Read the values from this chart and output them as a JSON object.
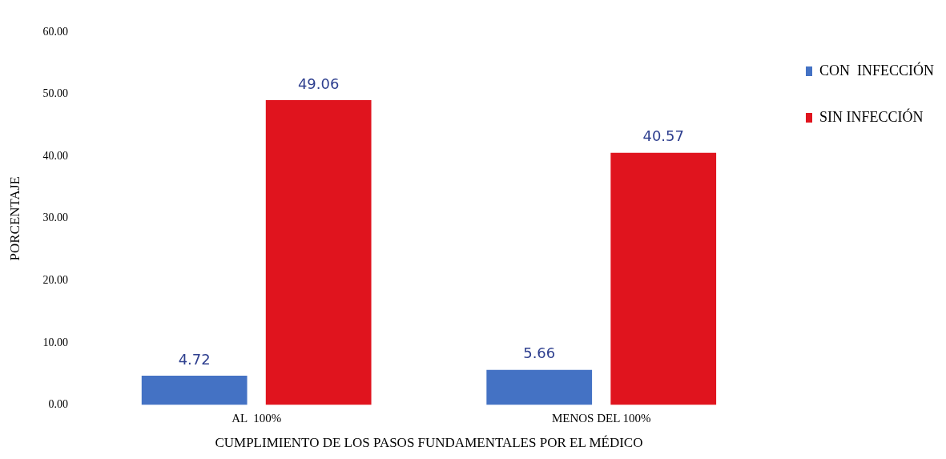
{
  "chart_data": {
    "type": "bar",
    "xlabel": "CUMPLIMIENTO DE LOS PASOS FUNDAMENTALES POR EL MÉDICO",
    "ylabel": "PORCENTAJE",
    "categories": [
      "AL  100%",
      "MENOS DEL 100%"
    ],
    "series": [
      {
        "name": "CON  INFECCIÓN",
        "color": "#4472c4",
        "values": [
          4.72,
          5.66
        ]
      },
      {
        "name": "SIN INFECCIÓN",
        "color": "#e0141e",
        "values": [
          49.06,
          40.57
        ]
      }
    ],
    "ylim": [
      0,
      60
    ],
    "yticks": [
      {
        "value": 0,
        "label": "0.00"
      },
      {
        "value": 10,
        "label": "10.00"
      },
      {
        "value": 20,
        "label": "20.00"
      },
      {
        "value": 30,
        "label": "30.00"
      },
      {
        "value": 40,
        "label": "40.00"
      },
      {
        "value": 50,
        "label": "50.00"
      },
      {
        "value": 60,
        "label": "60.00"
      }
    ],
    "grid": false,
    "legend": "top right",
    "data_labels": true
  }
}
